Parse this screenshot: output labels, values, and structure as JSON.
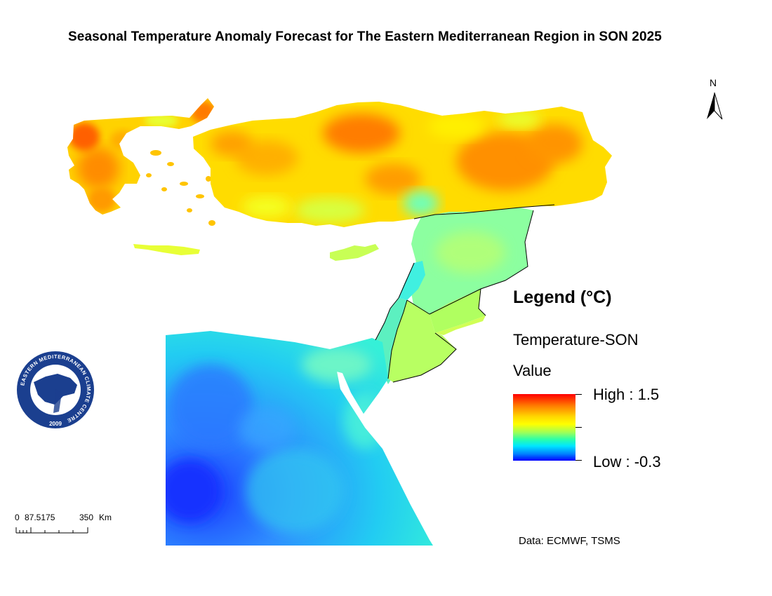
{
  "title": "Seasonal Temperature Anomaly Forecast for The Eastern Mediterranean Region in SON 2025",
  "north_arrow": {
    "label": "N"
  },
  "legend": {
    "title": "Legend (°C)",
    "layer_name": "Temperature-SON",
    "field_name": "Value",
    "high_label": "High : 1.5",
    "low_label": "Low : -0.3",
    "high_value": 1.5,
    "low_value": -0.3,
    "colors": [
      "#ff0000",
      "#ff7f00",
      "#ffd800",
      "#ffff00",
      "#9bff5a",
      "#2cffa8",
      "#00e6ff",
      "#0080ff",
      "#0000ff"
    ]
  },
  "scale_bar": {
    "label_0": "0",
    "label_mid": "87.5175",
    "label_end": "350",
    "unit": "Km"
  },
  "source": "Data: ECMWF, TSMS",
  "logo": {
    "text": "EASTERN MEDITERRANEAN CLIMATE CENTRE",
    "year": "2009"
  },
  "regions": {
    "turkey": "warm",
    "greece": "warm",
    "cyprus": "neutral",
    "syria": "neutral",
    "lebanon": "cool",
    "israel_palestine": "cool",
    "jordan": "neutral",
    "egypt": "cold"
  }
}
